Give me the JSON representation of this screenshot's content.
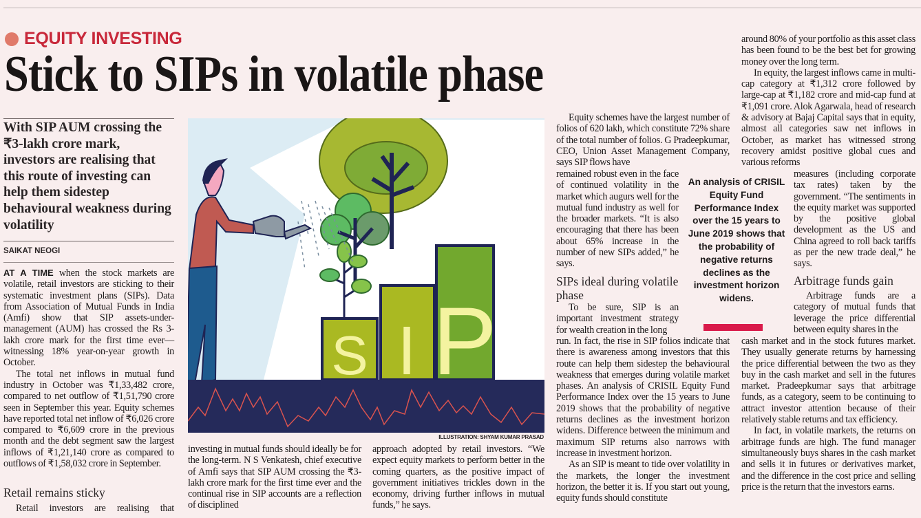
{
  "kicker": "EQUITY INVESTING",
  "headline": "Stick to SIPs in volatile phase",
  "standfirst": "With SIP AUM crossing the ₹3-lakh crore mark, investors are realising that this route of investing can help them sidestep behavioural weakness during volatility",
  "byline": "SAIKAT NEOGI",
  "colors": {
    "kicker": "#c8283a",
    "kicker_dot": "#e07a6a",
    "pull_bar": "#d91a4a",
    "background": "#f9eeee"
  },
  "col1": {
    "lead": "AT A TIME",
    "p1": " when the stock markets are volatile, retail investors are sticking to their systematic investment plans (SIPs). Data from Association of Mutual Funds in India (Amfi) show that SIP assets-under-management (AUM) has crossed the Rs 3-lakh crore mark for the first time ever—witnessing 18% year-on-year growth in October.",
    "p2": "The total net inflows in mutual fund industry in October was ₹1,33,482 crore, compared to net outflow of ₹1,51,790 crore seen in September this year. Equity schemes have reported total net inflow of ₹6,026 crore compared to ₹6,609 crore in the previous month and the debt segment saw the largest inflows of ₹1,21,140 crore as compared to outflows of ₹1,58,032 crore in September.",
    "subhead": "Retail remains sticky",
    "p3": "Retail investors are realising that"
  },
  "col2": {
    "p1": "investing in mutual funds should ideally be for the long-term. N S Venkatesh, chief executive of Amfi says that SIP AUM crossing the ₹3-lakh crore mark for the first time ever and the continual rise in SIP accounts are a reflection of disciplined"
  },
  "col3": {
    "p1": "approach adopted by retail investors. “We expect equity markets to perform better in the coming quarters, as the positive impact of government initiatives trickles down in the economy, driving further inflows in mutual funds,” he says."
  },
  "col4": {
    "p1a": "Equity schemes have the largest number of folios of 620 lakh, which constitute 72% share of the total number of folios. G Pradeepkumar, CEO, Union Asset Management Company, says SIP flows have",
    "p1b": "remained robust even in the face of continued volatility in the market which augurs well for the mutual fund industry as well for the broader markets. “It is also encouraging that there has been about 65% increase in the number of new SIPs added,” he says.",
    "subhead": "SIPs ideal during volatile phase",
    "p2a": "To be sure, SIP is an important investment strategy for wealth creation in the long",
    "p2b": "run. In fact, the rise in SIP folios indicate that there is awareness among investors that this route can help them sidestep the behavioural weakness that emerges during volatile market phases. An analysis of CRISIL Equity Fund Performance Index over the 15 years to June 2019 shows that the probability of negative returns declines as the investment horizon widens. Difference between the minimum and maximum SIP returns also narrows with increase in investment horizon.",
    "p3": "As an SIP is meant to tide over volatility in the markets, the longer the investment horizon, the better it is. If you start out young, equity funds should constitute"
  },
  "col5": {
    "p1": "around 80% of your portfolio as this asset class has been found to be the best bet for growing money over the long term.",
    "p2a": "In equity, the largest inflows came in multi-cap category at ₹1,312 crore followed by large-cap at ₹1,182 crore and mid-cap fund at ₹1,091 crore. Alok Agarwala, head of research & advisory at Bajaj Capital says that in equity, almost all categories saw net inflows in October, as market has witnessed strong recovery amidst positive global cues and various reforms",
    "p2b": "measures (including corporate tax rates) taken by the government. “The sentiments in the equity market was supported by the positive global development as the US and China agreed to roll back tariffs as per the new trade deal,” he says.",
    "subhead": "Arbitrage funds gain",
    "p3a": "Arbitrage funds are a category of mutual funds that leverage the price differential between equity shares in the",
    "p3b": "cash market and in the stock futures market. They usually generate returns by harnessing the price differential between the two as they buy in the cash market and sell in the futures market. Pradeepkumar says that arbitrage funds, as a category, seem to be continuing to attract investor attention because of their relatively stable returns and tax efficiency.",
    "p4": "In fact, in volatile markets, the returns on arbitrage funds are high. The fund manager simultaneously buys shares in the cash market and sells it in futures or derivatives market, and the difference in the cost price and selling price is the return that the investors earns."
  },
  "pull_quote": "An analysis of CRISIL Equity Fund Performance Index over the 15 years to June 2019 shows that the probability of negative returns declines as the investment horizon widens.",
  "illustration": {
    "credit": "ILLUSTRATION: SHYAM KUMAR PRASAD",
    "letters": [
      "S",
      "I",
      "P"
    ]
  }
}
